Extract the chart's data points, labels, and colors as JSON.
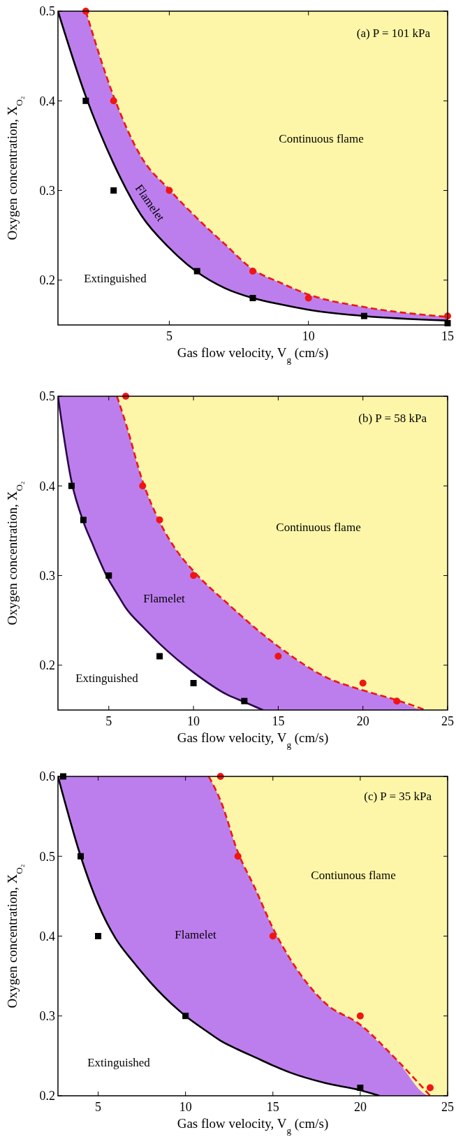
{
  "chart_data": [
    {
      "type": "line",
      "title": "(a) P = 101 kPa",
      "xlabel": "Gas flow velocity, V$_{g}$ (cm/s)",
      "ylabel": "Oxygen concentration, X$_{O₂}$",
      "xlim": [
        1,
        15
      ],
      "xticks": [
        5,
        10,
        15
      ],
      "ylim": [
        0.15,
        0.5
      ],
      "yticks": [
        0.2,
        0.3,
        0.4,
        0.5
      ],
      "annotations": [
        "Continuous flame",
        "Flamelet",
        "Extinguished"
      ],
      "series": [
        {
          "color": "#000000",
          "line_style": "solid",
          "x": [
            1,
            2,
            3,
            4,
            5,
            6,
            7,
            8,
            9,
            10,
            12,
            15
          ],
          "values": [
            0.5,
            0.405,
            0.33,
            0.272,
            0.236,
            0.209,
            0.191,
            0.18,
            0.173,
            0.167,
            0.16,
            0.155
          ],
          "lower": [
            0.5,
            0.405,
            0.33,
            0.272,
            0.236,
            0.209,
            0.191,
            0.18,
            0.173,
            0.167,
            0.16,
            0.155
          ],
          "upper": [
            0.5,
            0.5,
            0.405,
            0.337,
            0.301,
            0.269,
            0.24,
            0.212,
            0.197,
            0.184,
            0.17,
            0.159
          ]
        },
        {
          "color": "#f01414",
          "line_style": "dashed",
          "x": [
            2,
            3,
            4,
            5,
            6,
            7,
            8,
            9,
            10,
            12,
            15
          ],
          "values": [
            0.5,
            0.405,
            0.337,
            0.301,
            0.269,
            0.24,
            0.212,
            0.197,
            0.184,
            0.17,
            0.159
          ],
          "lower": [
            0.5,
            0.405,
            0.337,
            0.301,
            0.269,
            0.24,
            0.212,
            0.197,
            0.184,
            0.17,
            0.159
          ],
          "upper": [
            0.5,
            0.5,
            0.5,
            0.5,
            0.5,
            0.5,
            0.5,
            0.5,
            0.5,
            0.5,
            0.5
          ]
        },
        {
          "type": "scatter",
          "color": "#000000",
          "marker": "square",
          "x": [
            2,
            3,
            6,
            8,
            12,
            15
          ],
          "values": [
            0.4,
            0.3,
            0.21,
            0.18,
            0.16,
            0.152
          ]
        },
        {
          "type": "scatter",
          "color": "#f01414",
          "marker": "circle",
          "x": [
            2,
            3,
            5,
            8,
            10,
            15
          ],
          "values": [
            0.5,
            0.4,
            0.3,
            0.21,
            0.18,
            0.16
          ]
        }
      ]
    },
    {
      "type": "line",
      "title": "(b) P = 58 kPa",
      "xlabel": "Gas flow velocity, V$_{g}$ (cm/s)",
      "ylabel": "Oxygen concentration, X$_{O₂}$",
      "xlim": [
        2,
        25
      ],
      "xticks": [
        5,
        10,
        15,
        20,
        25
      ],
      "ylim": [
        0.15,
        0.5
      ],
      "yticks": [
        0.2,
        0.3,
        0.4,
        0.5
      ],
      "annotations": [
        "Continuous flame",
        "Flamelet",
        "Extinguished"
      ],
      "series": [
        {
          "color": "#2a0a4a",
          "line_style": "solid",
          "x": [
            2,
            2.8,
            3.5,
            4,
            5,
            5.48,
            6,
            7,
            8,
            9,
            10,
            12,
            13,
            14.1,
            15,
            18,
            20,
            22,
            23.7
          ],
          "values": [
            0.5,
            0.405,
            0.36,
            0.337,
            0.295,
            0.28,
            0.264,
            0.243,
            0.224,
            0.207,
            0.192,
            0.167,
            0.159,
            0.15,
            null,
            null,
            null,
            null,
            null
          ],
          "lower": [
            0.5,
            0.405,
            0.36,
            0.337,
            0.295,
            0.28,
            0.264,
            0.243,
            0.224,
            0.207,
            0.192,
            0.167,
            0.159,
            0.15,
            0.15,
            0.15,
            0.15,
            0.15,
            0.15
          ],
          "upper": [
            0.5,
            0.5,
            0.5,
            0.5,
            0.5,
            0.5,
            0.47,
            0.405,
            0.36,
            0.328,
            0.305,
            0.269,
            0.253,
            0.235,
            0.221,
            0.185,
            0.172,
            0.161,
            0.15
          ]
        },
        {
          "color": "#f01414",
          "line_style": "dashed",
          "x": [
            5.48,
            6,
            7,
            8,
            9,
            10,
            12,
            15,
            18,
            20,
            22,
            23.7,
            25
          ],
          "values": [
            0.5,
            0.47,
            0.405,
            0.36,
            0.328,
            0.305,
            0.269,
            0.221,
            0.185,
            0.172,
            0.161,
            0.15,
            null
          ],
          "lower": [
            0.5,
            0.47,
            0.405,
            0.36,
            0.328,
            0.305,
            0.269,
            0.221,
            0.185,
            0.172,
            0.161,
            0.15,
            0.15
          ],
          "upper": [
            0.5,
            0.5,
            0.5,
            0.5,
            0.5,
            0.5,
            0.5,
            0.5,
            0.5,
            0.5,
            0.5,
            0.5,
            0.5
          ]
        },
        {
          "type": "scatter",
          "color": "#000000",
          "marker": "square",
          "x": [
            2.8,
            3.5,
            5,
            8,
            10,
            13
          ],
          "values": [
            0.4,
            0.362,
            0.3,
            0.21,
            0.18,
            0.16
          ]
        },
        {
          "type": "scatter",
          "color": "#f01414",
          "marker": "circle",
          "x": [
            6,
            7,
            8,
            10,
            15,
            20,
            22
          ],
          "values": [
            0.5,
            0.4,
            0.362,
            0.3,
            0.21,
            0.18,
            0.16
          ]
        }
      ]
    },
    {
      "type": "line",
      "title": "(c) P = 35 kPa",
      "xlabel": "Gas flow velocity, V$_{g}$ (cm/s)",
      "ylabel": "Oxygen concentration, X$_{O₂}$",
      "xlim": [
        2.7,
        25
      ],
      "xticks": [
        5,
        10,
        15,
        20,
        25
      ],
      "ylim": [
        0.2,
        0.6
      ],
      "yticks": [
        0.2,
        0.3,
        0.4,
        0.5,
        0.6
      ],
      "annotations": [
        "Contiunous flame",
        "Flamelet",
        "Extinguished"
      ],
      "series": [
        {
          "color": "#000000",
          "line_style": "solid",
          "x": [
            2.7,
            4,
            5,
            6,
            7,
            8,
            10,
            11.33,
            12,
            13,
            14,
            15,
            16,
            18,
            20,
            21.1,
            22,
            24
          ],
          "values": [
            0.6,
            0.5,
            0.44,
            0.397,
            0.368,
            0.342,
            0.3,
            0.279,
            0.269,
            0.258,
            0.248,
            0.238,
            0.229,
            0.216,
            0.207,
            0.2,
            null,
            null
          ],
          "lower": [
            0.6,
            0.5,
            0.44,
            0.397,
            0.368,
            0.342,
            0.3,
            0.279,
            0.269,
            0.258,
            0.248,
            0.238,
            0.229,
            0.216,
            0.207,
            0.2,
            0.2,
            0.2
          ],
          "upper": [
            0.6,
            0.6,
            0.6,
            0.6,
            0.6,
            0.6,
            0.6,
            0.6,
            0.57,
            0.505,
            0.459,
            0.41,
            0.371,
            0.316,
            0.289,
            0.266,
            0.247,
            0.2
          ]
        },
        {
          "color": "#f01414",
          "line_style": "dashed",
          "x": [
            11.33,
            12,
            13,
            14,
            15,
            16,
            18,
            20,
            22,
            24,
            25
          ],
          "values": [
            0.6,
            0.57,
            0.505,
            0.459,
            0.41,
            0.371,
            0.316,
            0.289,
            0.247,
            0.2,
            null
          ],
          "lower": [
            0.6,
            0.57,
            0.505,
            0.459,
            0.41,
            0.371,
            0.316,
            0.289,
            0.247,
            0.2,
            0.2
          ],
          "upper": [
            0.6,
            0.6,
            0.6,
            0.6,
            0.6,
            0.6,
            0.6,
            0.6,
            0.6,
            0.6,
            0.6
          ]
        },
        {
          "type": "scatter",
          "color": "#000000",
          "marker": "square",
          "x": [
            3,
            4,
            5,
            10,
            20
          ],
          "values": [
            0.6,
            0.5,
            0.4,
            0.3,
            0.21
          ]
        },
        {
          "type": "scatter",
          "color": "#f01414",
          "marker": "circle",
          "x": [
            12,
            13,
            15,
            20,
            24
          ],
          "values": [
            0.6,
            0.5,
            0.4,
            0.3,
            0.21
          ]
        }
      ]
    }
  ]
}
